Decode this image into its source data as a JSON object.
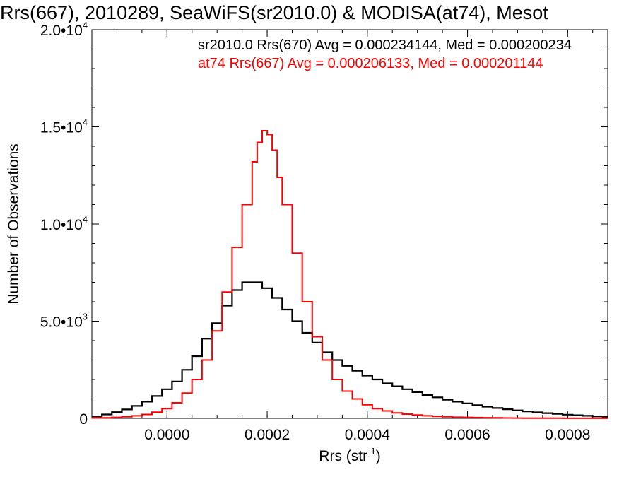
{
  "chart_data": {
    "type": "line",
    "step": true,
    "title": "Rrs(667), 2010289, SeaWiFS(sr2010.0) & MODISA(at74), Mesot",
    "xlabel": {
      "base": "Rrs (str",
      "sup": "-1",
      "tail": ")"
    },
    "ylabel": "Number of Observations",
    "xlim": [
      -0.00015,
      0.00088
    ],
    "ylim": [
      0,
      20000
    ],
    "x_ticks": [
      {
        "value": 0.0,
        "label": "0.0000"
      },
      {
        "value": 0.0002,
        "label": "0.0002"
      },
      {
        "value": 0.0004,
        "label": "0.0004"
      },
      {
        "value": 0.0006,
        "label": "0.0006"
      },
      {
        "value": 0.0008,
        "label": "0.0008"
      }
    ],
    "y_ticks": [
      {
        "value": 0,
        "base": "0",
        "exp": ""
      },
      {
        "value": 5000,
        "base": "5.0•10",
        "exp": "3"
      },
      {
        "value": 10000,
        "base": "1.0•10",
        "exp": "4"
      },
      {
        "value": 15000,
        "base": "1.5•10",
        "exp": "4"
      },
      {
        "value": 20000,
        "base": "2.0•10",
        "exp": "4"
      }
    ],
    "grid": false,
    "legend_position": "top-right",
    "series": [
      {
        "name": "sr2010.0 Rrs(670)",
        "legend_text": "sr2010.0 Rrs(670) Avg = 0.000234144, Med = 0.000200234",
        "color": "#000000",
        "x": [
          -0.00015,
          -0.00013,
          -0.00011,
          -9e-05,
          -7e-05,
          -5e-05,
          -3e-05,
          -1e-05,
          1e-05,
          3e-05,
          5e-05,
          7e-05,
          9e-05,
          0.00011,
          0.00013,
          0.00015,
          0.00017,
          0.00019,
          0.00021,
          0.00023,
          0.00025,
          0.00027,
          0.00029,
          0.00031,
          0.00033,
          0.00035,
          0.00037,
          0.00039,
          0.00041,
          0.00043,
          0.00045,
          0.00047,
          0.00049,
          0.00051,
          0.00053,
          0.00055,
          0.00057,
          0.00059,
          0.00061,
          0.00063,
          0.00065,
          0.00067,
          0.00069,
          0.00071,
          0.00073,
          0.00075,
          0.00077,
          0.00079,
          0.00081,
          0.00083,
          0.00085,
          0.00087
        ],
        "y": [
          100,
          200,
          320,
          460,
          640,
          860,
          1150,
          1500,
          1900,
          2500,
          3200,
          4100,
          4900,
          5800,
          6600,
          7000,
          7000,
          6700,
          6200,
          5600,
          5000,
          4400,
          3900,
          3400,
          3000,
          2700,
          2450,
          2200,
          2000,
          1800,
          1650,
          1500,
          1350,
          1200,
          1080,
          960,
          860,
          770,
          680,
          600,
          530,
          470,
          410,
          360,
          310,
          270,
          230,
          190,
          160,
          130,
          100,
          80
        ]
      },
      {
        "name": "at74 Rrs(667)",
        "legend_text": "at74 Rrs(667) Avg = 0.000206133, Med = 0.000201144",
        "color": "#ff0000",
        "x": [
          -0.00015,
          -0.00013,
          -0.00011,
          -9e-05,
          -7e-05,
          -5e-05,
          -3e-05,
          -1e-05,
          1e-05,
          3e-05,
          5e-05,
          7e-05,
          9e-05,
          0.00011,
          0.00013,
          0.00015,
          0.00017,
          0.00018,
          0.00019,
          0.0002,
          0.00021,
          0.00022,
          0.00023,
          0.00025,
          0.00027,
          0.00029,
          0.00031,
          0.00033,
          0.00035,
          0.00037,
          0.00039,
          0.00041,
          0.00043,
          0.00045,
          0.00047,
          0.00049,
          0.00051,
          0.00053,
          0.00055,
          0.00057,
          0.00059,
          0.00061,
          0.00063,
          0.00065,
          0.00067,
          0.00069,
          0.00071,
          0.00073,
          0.00075,
          0.00077,
          0.00079,
          0.00081,
          0.00083,
          0.00085,
          0.00087
        ],
        "y": [
          20,
          30,
          50,
          80,
          130,
          200,
          320,
          500,
          800,
          1300,
          2000,
          3000,
          4500,
          6500,
          8800,
          11000,
          13200,
          14200,
          14800,
          14600,
          13800,
          12400,
          11000,
          8500,
          6000,
          4200,
          3000,
          2000,
          1400,
          1000,
          700,
          500,
          380,
          280,
          220,
          170,
          130,
          100,
          80,
          60,
          50,
          40,
          32,
          25,
          20,
          16,
          12,
          10,
          8,
          6,
          5,
          4,
          3,
          2,
          2
        ]
      }
    ]
  }
}
